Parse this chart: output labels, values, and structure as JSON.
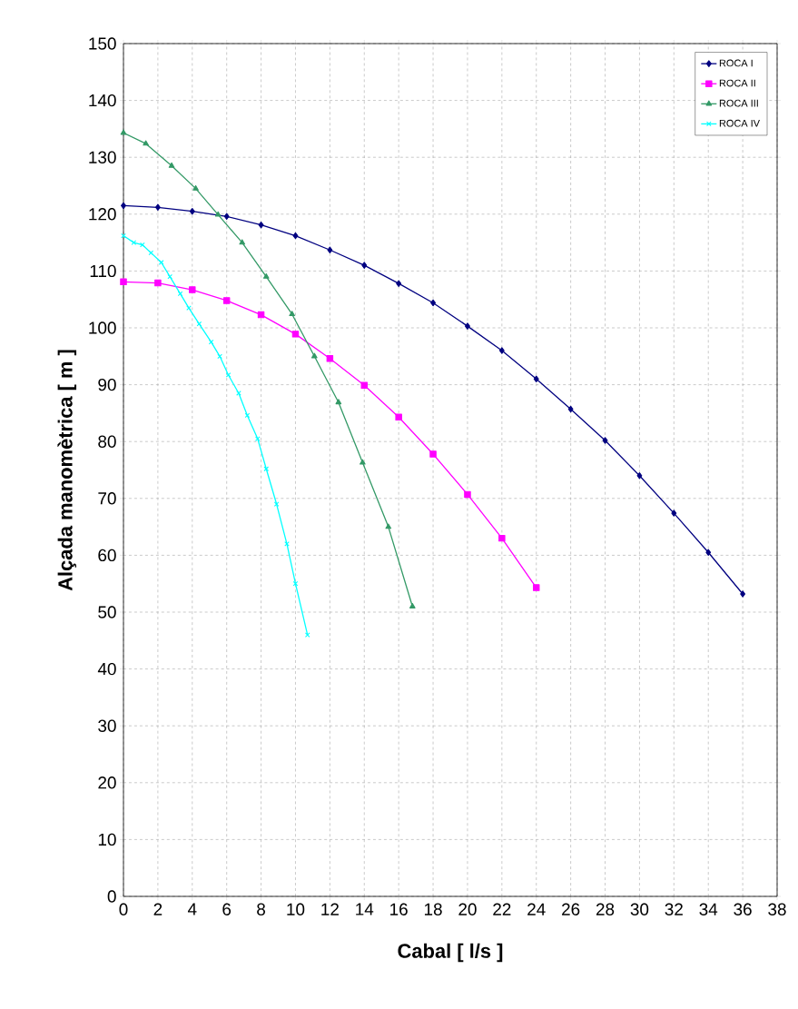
{
  "chart_data": {
    "type": "line",
    "xlabel": "Cabal  [ l/s ]",
    "ylabel": "Alçada manomètrica  [ m ]",
    "xlim": [
      0,
      38
    ],
    "ylim": [
      0,
      150
    ],
    "xticks": [
      0,
      2,
      4,
      6,
      8,
      10,
      12,
      14,
      16,
      18,
      20,
      22,
      24,
      26,
      28,
      30,
      32,
      34,
      36,
      38
    ],
    "yticks": [
      0,
      10,
      20,
      30,
      40,
      50,
      60,
      70,
      80,
      90,
      100,
      110,
      120,
      130,
      140,
      150
    ],
    "grid": true,
    "legend": "top right",
    "line_style": "solid",
    "series": [
      {
        "name": "ROCA I",
        "color": "#000080",
        "marker": "diamond",
        "x": [
          0,
          2,
          4,
          6,
          8,
          10,
          12,
          14,
          16,
          18,
          20,
          22,
          24,
          26,
          28,
          30,
          32,
          34,
          36
        ],
        "values": [
          121.5,
          121.2,
          120.5,
          119.6,
          118.1,
          116.2,
          113.7,
          111,
          107.8,
          104.4,
          100.3,
          96,
          91,
          85.7,
          80.2,
          74,
          67.4,
          60.5,
          53.2
        ]
      },
      {
        "name": "ROCA II",
        "color": "#ff00ff",
        "marker": "square",
        "x": [
          0,
          2,
          4,
          6,
          8,
          10,
          12,
          14,
          16,
          18,
          20,
          22,
          24
        ],
        "values": [
          108.1,
          107.9,
          106.7,
          104.8,
          102.3,
          98.9,
          94.6,
          89.9,
          84.3,
          77.8,
          70.7,
          63,
          54.3
        ]
      },
      {
        "name": "ROCA III",
        "color": "#339966",
        "marker": "triangle",
        "x": [
          0,
          1.3,
          2.8,
          4.2,
          5.5,
          6.9,
          8.3,
          9.8,
          11.1,
          12.5,
          13.9,
          15.4,
          16.8
        ],
        "values": [
          134.3,
          132.4,
          128.5,
          124.5,
          119.9,
          115,
          109,
          102.4,
          95,
          86.9,
          76.3,
          65,
          51
        ]
      },
      {
        "name": "ROCA IV",
        "color": "#00ffff",
        "marker": "cross",
        "x": [
          0,
          0.6,
          1.1,
          1.6,
          2.2,
          2.7,
          3.3,
          3.8,
          4.4,
          5.1,
          5.6,
          6.1,
          6.7,
          7.2,
          7.8,
          8.3,
          8.9,
          9.5,
          10,
          10.7
        ],
        "values": [
          116.2,
          115,
          114.6,
          113.2,
          111.5,
          109,
          106,
          103.5,
          100.7,
          97.5,
          95,
          91.7,
          88.5,
          84.6,
          80.5,
          75.2,
          69,
          62,
          55,
          46
        ]
      }
    ]
  }
}
